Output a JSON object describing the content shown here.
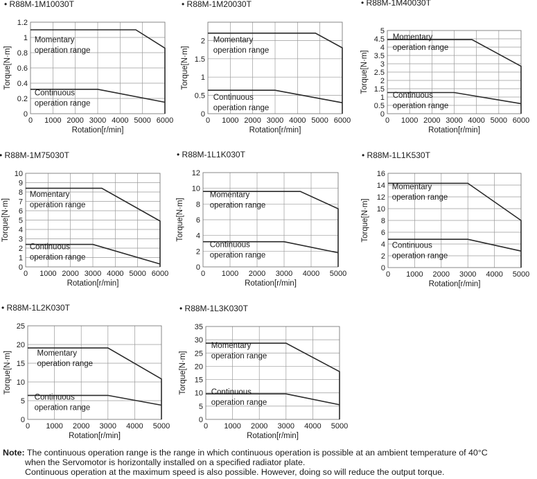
{
  "note": {
    "label": "Note:",
    "line1": "The continuous operation range is the range in which continuous operation is possible at an ambient temperature of 40°C",
    "line2": "when the Servomotor is horizontally installed on a specified radiator plate.",
    "line3": "Continuous operation at the maximum speed is also possible. However, doing so will reduce the output torque."
  },
  "chart_data": [
    {
      "type": "line",
      "title": "R88M-1M10030T",
      "xlabel": "Rotation[r/min]",
      "ylabel": "Torque[N·m]",
      "xlim": [
        0,
        6000
      ],
      "ylim": [
        0,
        1.2
      ],
      "xticks": [
        0,
        1000,
        2000,
        3000,
        4000,
        5000,
        6000
      ],
      "yticks": [
        0,
        0.2,
        0.4,
        0.6,
        0.8,
        1,
        1.2
      ],
      "grid": true,
      "momentary": {
        "label": [
          "Momentary",
          "operation range"
        ],
        "x": [
          0,
          4700,
          6000,
          6000
        ],
        "y": [
          1.1,
          1.1,
          0.86,
          0
        ]
      },
      "continuous": {
        "label": [
          "Continuous",
          "operation range"
        ],
        "x": [
          0,
          3000,
          6000
        ],
        "y": [
          0.32,
          0.32,
          0.15
        ]
      }
    },
    {
      "type": "line",
      "title": "R88M-1M20030T",
      "xlabel": "Rotation[r/min]",
      "ylabel": "Torque[N·m]",
      "xlim": [
        0,
        6000
      ],
      "ylim": [
        0,
        2.5
      ],
      "xticks": [
        0,
        1000,
        2000,
        3000,
        4000,
        5000,
        6000
      ],
      "yticks": [
        0,
        0.5,
        1,
        1.5,
        2
      ],
      "grid": true,
      "momentary": {
        "label": [
          "Momentary",
          "operation range"
        ],
        "x": [
          0,
          4800,
          6000,
          6000
        ],
        "y": [
          2.2,
          2.2,
          1.8,
          0
        ]
      },
      "continuous": {
        "label": [
          "Continuous",
          "operation range"
        ],
        "x": [
          0,
          3000,
          6000
        ],
        "y": [
          0.64,
          0.64,
          0.3
        ]
      }
    },
    {
      "type": "line",
      "title": "R88M-1M40030T",
      "xlabel": "Rotation[r/min]",
      "ylabel": "Torque[N·m]",
      "xlim": [
        0,
        6000
      ],
      "ylim": [
        0,
        5
      ],
      "xticks": [
        0,
        1000,
        2000,
        3000,
        4000,
        5000,
        6000
      ],
      "yticks": [
        0,
        0.5,
        1,
        1.5,
        2,
        2.5,
        3,
        3.5,
        4,
        4.5,
        5
      ],
      "grid": true,
      "momentary": {
        "label": [
          "Momentary",
          "operation range"
        ],
        "x": [
          0,
          3800,
          6000,
          6000
        ],
        "y": [
          4.45,
          4.45,
          2.85,
          0
        ]
      },
      "continuous": {
        "label": [
          "Continuous",
          "operation range"
        ],
        "x": [
          0,
          3000,
          6000
        ],
        "y": [
          1.27,
          1.27,
          0.6
        ]
      }
    },
    {
      "type": "line",
      "title": "R88M-1M75030T",
      "xlabel": "Rotation[r/min]",
      "ylabel": "Torque[N·m]",
      "xlim": [
        0,
        6000
      ],
      "ylim": [
        0,
        10
      ],
      "xticks": [
        0,
        1000,
        2000,
        3000,
        4000,
        5000,
        6000
      ],
      "yticks": [
        0,
        1,
        2,
        3,
        4,
        5,
        6,
        7,
        8,
        9,
        10
      ],
      "grid": true,
      "momentary": {
        "label": [
          "Momentary",
          "operation range"
        ],
        "x": [
          0,
          3400,
          6000,
          6000
        ],
        "y": [
          8.4,
          8.4,
          4.9,
          0
        ]
      },
      "continuous": {
        "label": [
          "Continuous",
          "operation range"
        ],
        "x": [
          0,
          3000,
          6000
        ],
        "y": [
          2.4,
          2.4,
          0.3
        ]
      }
    },
    {
      "type": "line",
      "title": "R88M-1L1K030T",
      "xlabel": "Rotation[r/min]",
      "ylabel": "Torque[N·m]",
      "xlim": [
        0,
        5000
      ],
      "ylim": [
        0,
        12
      ],
      "xticks": [
        0,
        1000,
        2000,
        3000,
        4000,
        5000
      ],
      "yticks": [
        0,
        2,
        4,
        6,
        8,
        10,
        12
      ],
      "grid": true,
      "momentary": {
        "label": [
          "Momentary",
          "operation range"
        ],
        "x": [
          0,
          3600,
          5000,
          5000
        ],
        "y": [
          9.6,
          9.6,
          7.4,
          0
        ]
      },
      "continuous": {
        "label": [
          "Continuous",
          "operation range"
        ],
        "x": [
          0,
          3000,
          5000
        ],
        "y": [
          3.2,
          3.2,
          1.8
        ]
      }
    },
    {
      "type": "line",
      "title": "R88M-1L1K530T",
      "xlabel": "Rotation[r/min]",
      "ylabel": "Torque[N·m]",
      "xlim": [
        0,
        5000
      ],
      "ylim": [
        0,
        16
      ],
      "xticks": [
        0,
        1000,
        2000,
        3000,
        4000,
        5000
      ],
      "yticks": [
        0,
        2,
        4,
        6,
        8,
        10,
        12,
        14,
        16
      ],
      "grid": true,
      "momentary": {
        "label": [
          "Momentary",
          "operation range"
        ],
        "x": [
          0,
          3000,
          5000,
          5000
        ],
        "y": [
          14.3,
          14.3,
          8,
          0
        ]
      },
      "continuous": {
        "label": [
          "Continuous",
          "operation range"
        ],
        "x": [
          0,
          3000,
          5000
        ],
        "y": [
          4.8,
          4.8,
          2.8
        ]
      }
    },
    {
      "type": "line",
      "title": "R88M-1L2K030T",
      "xlabel": "Rotation[r/min]",
      "ylabel": "Torque[N·m]",
      "xlim": [
        0,
        5000
      ],
      "ylim": [
        0,
        25
      ],
      "xticks": [
        0,
        1000,
        2000,
        3000,
        4000,
        5000
      ],
      "yticks": [
        0,
        5,
        10,
        15,
        20,
        25
      ],
      "grid": true,
      "momentary": {
        "label": [
          "Momentary",
          "operation range"
        ],
        "x": [
          0,
          3000,
          5000,
          5000
        ],
        "y": [
          19.1,
          19.1,
          10.8,
          0
        ]
      },
      "continuous": {
        "label": [
          "Continuous",
          "operation range"
        ],
        "x": [
          0,
          3000,
          5000
        ],
        "y": [
          6.4,
          6.4,
          3.8
        ]
      }
    },
    {
      "type": "line",
      "title": "R88M-1L3K030T",
      "xlabel": "Rotation[r/min]",
      "ylabel": "Torque[N·m]",
      "xlim": [
        0,
        5000
      ],
      "ylim": [
        0,
        35
      ],
      "xticks": [
        0,
        1000,
        2000,
        3000,
        4000,
        5000
      ],
      "yticks": [
        0,
        5,
        10,
        15,
        20,
        25,
        30,
        35
      ],
      "grid": true,
      "momentary": {
        "label": [
          "Momentary",
          "operation range"
        ],
        "x": [
          0,
          3000,
          5000,
          5000
        ],
        "y": [
          28.7,
          28.7,
          18,
          0
        ]
      },
      "continuous": {
        "label": [
          "Continuous",
          "operation range"
        ],
        "x": [
          0,
          3000,
          5000
        ],
        "y": [
          9.6,
          9.6,
          5.5
        ]
      }
    }
  ]
}
